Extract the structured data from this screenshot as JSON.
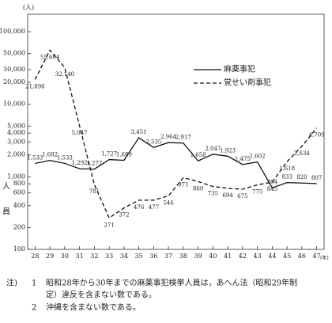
{
  "chart_data": {
    "type": "line",
    "y_unit": "(人)",
    "x_unit": "(年)",
    "y_axis_label": [
      "人",
      "員"
    ],
    "categories": [
      "28",
      "29",
      "30",
      "31",
      "32",
      "33",
      "34",
      "35",
      "36",
      "37",
      "38",
      "39",
      "40",
      "41",
      "42",
      "43",
      "44",
      "45",
      "46",
      "47"
    ],
    "series": [
      {
        "name": "麻薬事犯",
        "color": "#111111",
        "dash": false,
        "values": [
          1533,
          1682,
          1533,
          1292,
          1277,
          1727,
          1689,
          3451,
          2535,
          2964,
          2917,
          1658,
          2047,
          1923,
          1475,
          1602,
          704,
          833,
          820,
          807
        ],
        "value_labels": [
          "1,533",
          "1,682",
          "1,533",
          "1,292",
          "1,277",
          "1,727",
          "1,689",
          "3,451",
          "2,535",
          "2,964",
          "2,917",
          "1,658",
          "2,047",
          "1,923",
          "1,475",
          "1,602",
          "704",
          "833",
          "820",
          "807"
        ]
      },
      {
        "name": "覚せい剤事犯",
        "color": "#111111",
        "dash": true,
        "values": [
          21898,
          55664,
          32140,
          5047,
          781,
          271,
          372,
          476,
          477,
          546,
          971,
          860,
          735,
          694,
          675,
          775,
          845,
          1618,
          2634,
          4709
        ],
        "value_labels": [
          "21,898",
          "55,664",
          "32,140",
          "5,047",
          "781",
          "271",
          "372",
          "476",
          "477",
          "546",
          "971",
          "860",
          "735",
          "694",
          "675",
          "775",
          "845",
          "1,618",
          "2,634",
          "4,709"
        ]
      }
    ],
    "log_y": true,
    "ylim": [
      100,
      100000
    ],
    "yticks": [
      100,
      200,
      400,
      600,
      800,
      {
        "value": 1000,
        "label": "1,000"
      },
      {
        "value": 2000,
        "label": "2,000"
      },
      {
        "value": 3000,
        "label": "3,000"
      },
      {
        "value": 4000,
        "label": "4,000"
      },
      {
        "value": 5000,
        "label": "5,000"
      },
      {
        "value": 10000,
        "label": "10,000"
      },
      {
        "value": 20000,
        "label": "20,000"
      },
      {
        "value": 30000,
        "label": "30,000"
      },
      {
        "value": 50000,
        "label": "50,000"
      },
      {
        "value": 100000,
        "label": "100,000"
      }
    ]
  },
  "notes": {
    "label": "注)",
    "items": [
      {
        "number": "1",
        "lines": [
          "昭和28年から30年までの麻薬事犯検挙人員は，あへん法（昭和29年制",
          "定）違反を含まない数である。"
        ]
      },
      {
        "number": "2",
        "lines": [
          "沖縄を含まない数である。"
        ]
      }
    ]
  }
}
